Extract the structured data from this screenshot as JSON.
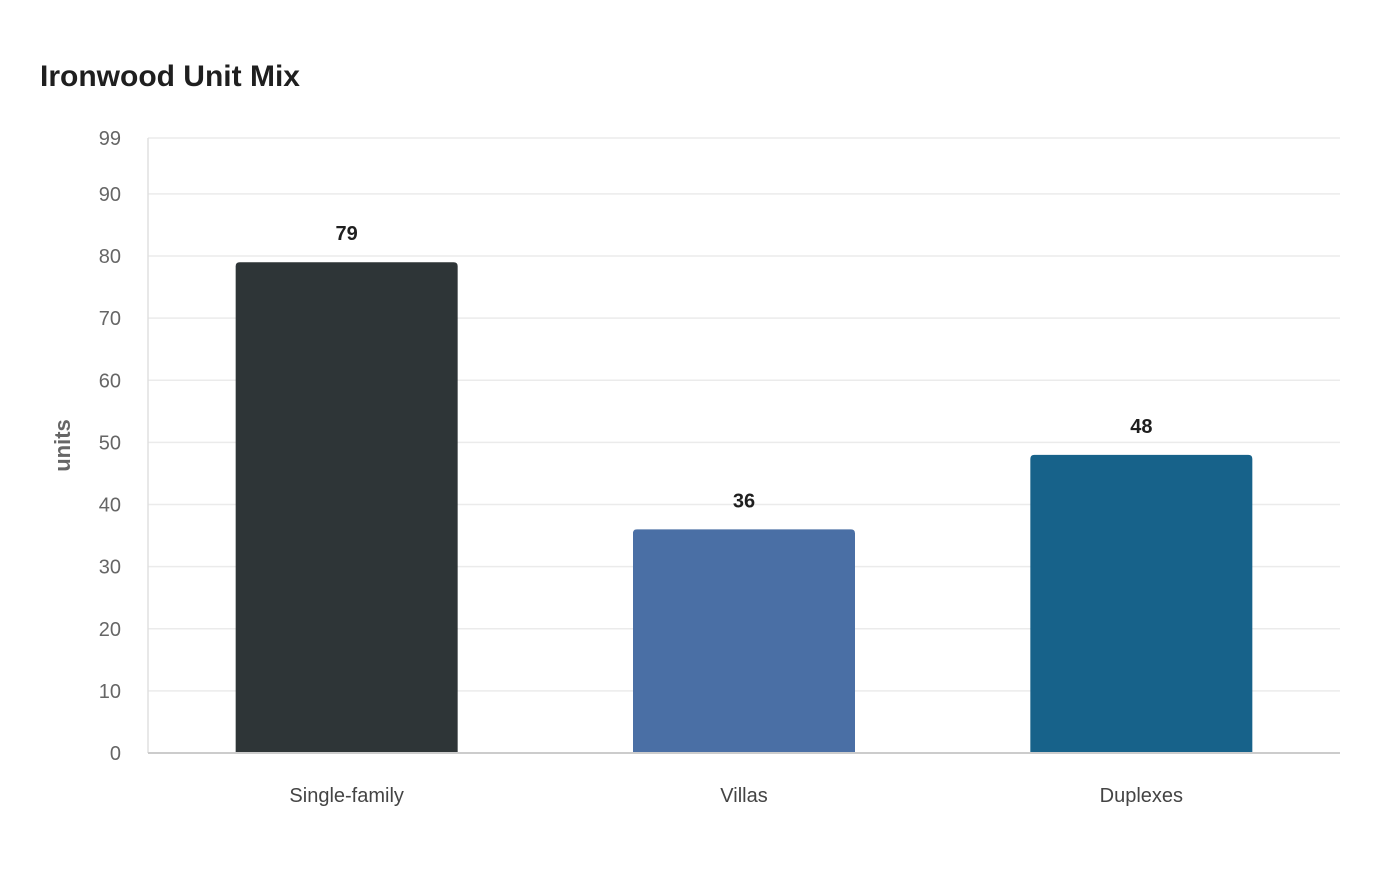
{
  "chart_data": {
    "type": "bar",
    "title": "Ironwood Unit Mix",
    "xlabel": "",
    "ylabel": "units",
    "categories": [
      "Single-family",
      "Villas",
      "Duplexes"
    ],
    "values": [
      79,
      36,
      48
    ],
    "colors": [
      "#2e3537",
      "#4a6fa5",
      "#17628a"
    ],
    "ylim": [
      0,
      99
    ],
    "yticks": [
      "0",
      "10",
      "20",
      "30",
      "40",
      "50",
      "60",
      "70",
      "80",
      "90",
      "99"
    ],
    "grid": true,
    "legend": "none",
    "data_labels": true
  }
}
